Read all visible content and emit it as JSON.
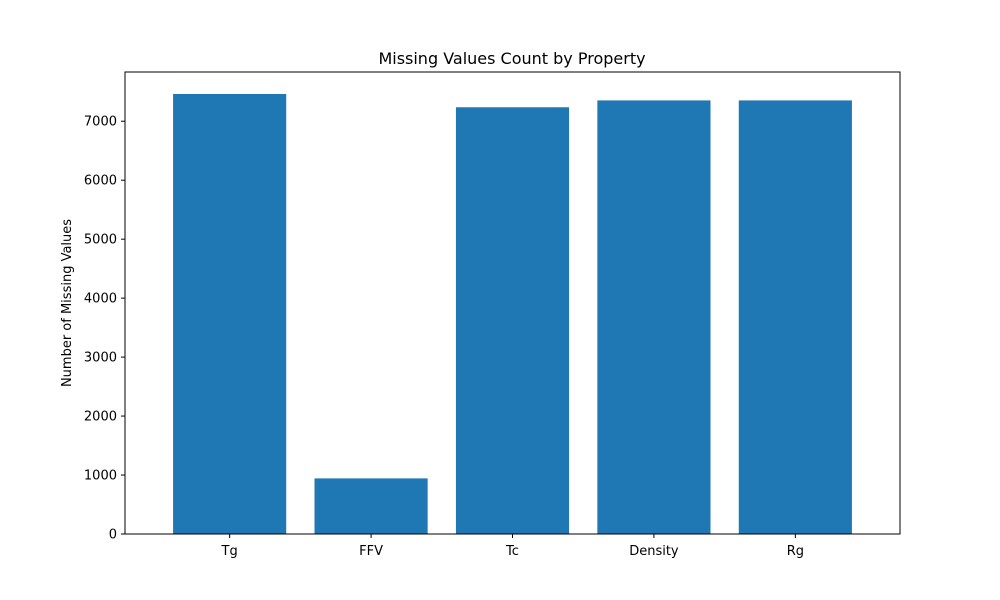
{
  "chart_data": {
    "type": "bar",
    "title": "Missing Values Count by Property",
    "xlabel": "",
    "ylabel": "Number of Missing Values",
    "categories": [
      "Tg",
      "FFV",
      "Tc",
      "Density",
      "Rg"
    ],
    "values": [
      7462,
      943,
      7237,
      7353,
      7353
    ],
    "ylim": [
      0,
      7835
    ],
    "yticks": [
      0,
      1000,
      2000,
      3000,
      4000,
      5000,
      6000,
      7000
    ],
    "bar_color": "#1f77b4",
    "grid": false
  }
}
